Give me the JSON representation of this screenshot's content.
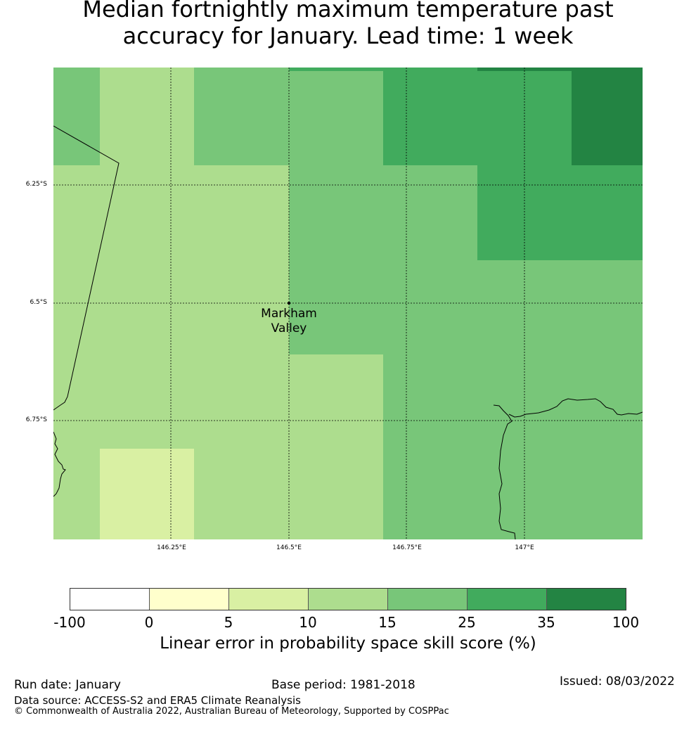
{
  "title": {
    "line1": "Median fortnightly maximum temperature past",
    "line2": "accuracy for January. Lead time: 1 week"
  },
  "map": {
    "lat_labels": [
      "6.25°S",
      "6.5°S",
      "6.75°S"
    ],
    "lon_labels": [
      "146.25°E",
      "146.5°E",
      "146.75°E",
      "147°E"
    ],
    "place": {
      "name_line1": "Markham",
      "name_line2": "Valley"
    }
  },
  "colors": {
    "c0": "#ffffff",
    "c1": "#ffffcc",
    "c2": "#d9f0a3",
    "c3": "#addd8e",
    "c4": "#78c679",
    "c5": "#41ab5d",
    "c6": "#238443"
  },
  "colorbar": {
    "ticks": [
      "-100",
      "0",
      "5",
      "10",
      "15",
      "25",
      "35",
      "100"
    ],
    "label": "Linear error in probability space skill score (%)"
  },
  "footer": {
    "run_date": "Run date: January",
    "base_period": "Base period: 1981-2018",
    "issued": "Issued: 08/03/2022",
    "data_source": "Data source: ACCESS-S2 and ERA5 Climate Reanalysis",
    "copyright": "© Commonwealth of Australia 2022, Australian Bureau of Meteorology, Supported by COSPPac"
  }
}
